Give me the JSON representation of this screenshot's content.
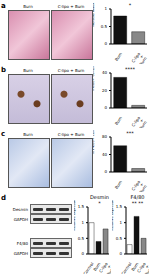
{
  "panels": [
    {
      "label": "a",
      "images": [
        "Burn",
        "C-lipo + Burn"
      ],
      "style": "he"
    },
    {
      "label": "b",
      "images": [
        "Burn",
        "C-lipo + Burn"
      ],
      "style": "ihc"
    },
    {
      "label": "c",
      "images": [
        "Burn",
        "C-lipo + Burn"
      ],
      "style": "blue"
    },
    {
      "label": "d",
      "blots": [
        [
          "Desmin",
          "GAPDH"
        ],
        [
          "F4/80",
          "GAPDH"
        ]
      ]
    }
  ],
  "chart_data": [
    {
      "type": "bar",
      "categories": [
        "Burn",
        "C-lipo + Burn"
      ],
      "values": [
        0.8,
        0.35
      ],
      "colors": [
        "#111111",
        "#888888"
      ],
      "ylim": [
        0,
        1
      ],
      "yticks": [
        0,
        0.5,
        1
      ],
      "y_label": "Fibrosis index",
      "annotations": [
        "*"
      ]
    },
    {
      "type": "bar",
      "categories": [
        "Burn",
        "C-lipo + Burn"
      ],
      "values": [
        35,
        3
      ],
      "colors": [
        "#111111",
        "#888888"
      ],
      "ylim": [
        0,
        40
      ],
      "yticks": [
        0,
        20,
        40
      ],
      "y_label": "F4/80+ cells/HPF",
      "annotations": [
        "****"
      ]
    },
    {
      "type": "bar",
      "categories": [
        "Burn",
        "C-lipo + Burn"
      ],
      "values": [
        60,
        8
      ],
      "colors": [
        "#111111",
        "#888888"
      ],
      "ylim": [
        0,
        80
      ],
      "yticks": [
        0,
        40,
        80
      ],
      "y_label": "% F4/80+ cells",
      "annotations": [
        "***"
      ]
    },
    {
      "type": "bar",
      "title": "Desmin",
      "categories": [
        "Control",
        "Burn",
        "C-lipo + Burn"
      ],
      "values": [
        1.0,
        0.4,
        0.8
      ],
      "colors": [
        "#ffffff",
        "#111111",
        "#888888"
      ],
      "ylim": [
        0,
        1.5
      ],
      "yticks": [
        0,
        0.5,
        1,
        1.5
      ],
      "y_label": "Relative expression",
      "annotations": [
        "*"
      ]
    },
    {
      "type": "bar",
      "title": "F4/80",
      "categories": [
        "Control",
        "Burn",
        "C-lipo + Burn"
      ],
      "values": [
        0.3,
        1.2,
        0.5
      ],
      "colors": [
        "#ffffff",
        "#111111",
        "#888888"
      ],
      "ylim": [
        0,
        1.5
      ],
      "yticks": [
        0,
        0.5,
        1,
        1.5
      ],
      "y_label": "Relative expression",
      "annotations": [
        "**",
        "**"
      ]
    }
  ]
}
